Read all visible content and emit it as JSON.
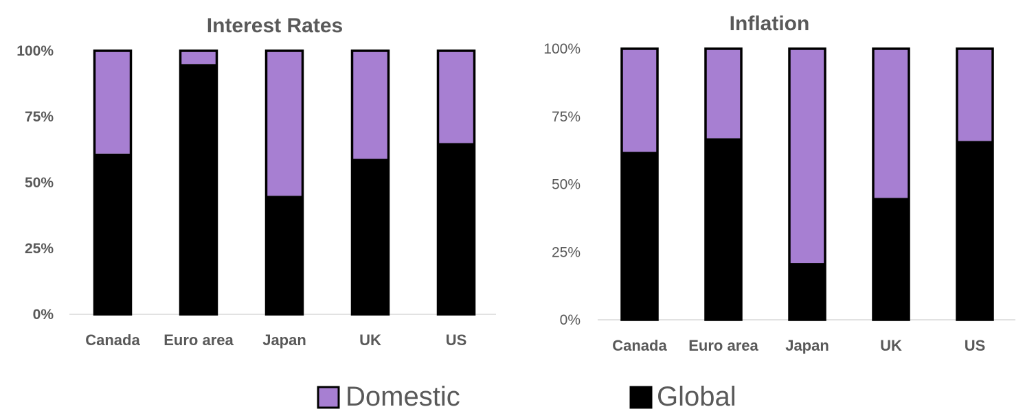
{
  "chart_data": [
    {
      "type": "bar",
      "stacked": true,
      "percent_stacked": true,
      "title": "Interest Rates",
      "categories": [
        "Canada",
        "Euro area",
        "Japan",
        "UK",
        "US"
      ],
      "series": [
        {
          "name": "Global",
          "values": [
            61,
            95,
            45,
            59,
            65
          ]
        },
        {
          "name": "Domestic",
          "values": [
            39,
            5,
            55,
            41,
            35
          ]
        }
      ],
      "yticks": [
        "0%",
        "25%",
        "50%",
        "75%",
        "100%"
      ],
      "ylim": [
        0,
        100
      ],
      "xlabel": "",
      "ylabel": ""
    },
    {
      "type": "bar",
      "stacked": true,
      "percent_stacked": true,
      "title": "Inflation",
      "categories": [
        "Canada",
        "Euro area",
        "Japan",
        "UK",
        "US"
      ],
      "series": [
        {
          "name": "Global",
          "values": [
            62,
            67,
            21,
            45,
            66
          ]
        },
        {
          "name": "Domestic",
          "values": [
            38,
            33,
            79,
            55,
            34
          ]
        }
      ],
      "yticks": [
        "0%",
        "25%",
        "50%",
        "75%",
        "100%"
      ],
      "ylim": [
        0,
        100
      ],
      "xlabel": "",
      "ylabel": ""
    }
  ],
  "legend": {
    "position": "bottom",
    "items": [
      {
        "label": "Domestic",
        "color": "#a77fd2"
      },
      {
        "label": "Global",
        "color": "#000000"
      }
    ]
  },
  "colors": {
    "Domestic": "#a77fd2",
    "Global": "#000000",
    "text": "#595959",
    "axis": "#d9d9d9"
  }
}
